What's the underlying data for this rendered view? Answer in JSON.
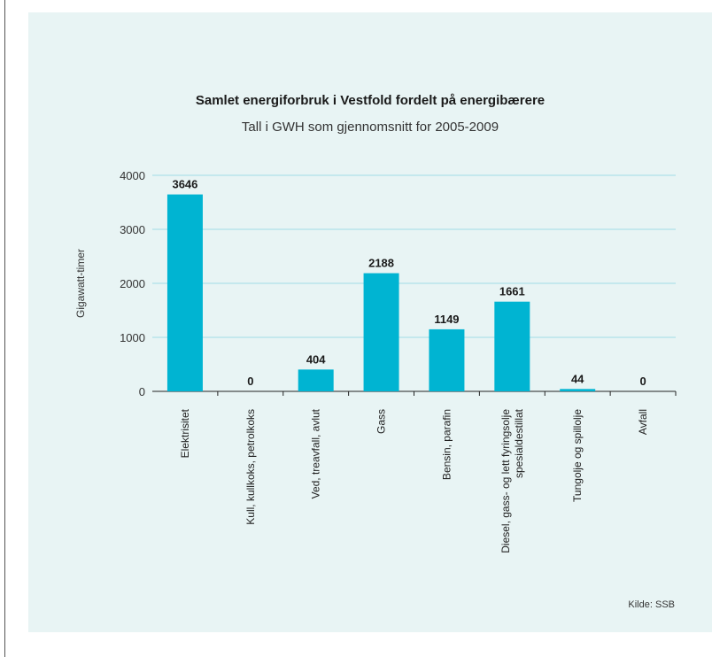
{
  "chart_data": {
    "type": "bar",
    "title": "Samlet energiforbruk i Vestfold fordelt på energibærere",
    "subtitle": "Tall i GWH som gjennomsnitt for 2005-2009",
    "xlabel": "",
    "ylabel": "Gigawatt-timer",
    "ylim": [
      0,
      4000
    ],
    "yticks": [
      "0",
      "1000",
      "2000",
      "3000",
      "4000"
    ],
    "grid": true,
    "bar_color": "#00b4d2",
    "gridline_color": "#9fdbe6",
    "categories": [
      "Elektrisitet",
      "Kull, kullkoks, petrolkoks",
      "Ved, treavfall, avlut",
      "Gass",
      "Bensin, parafin",
      "Diesel, gass- og lett fyringsolje spesialdestillat",
      "Tungolje og spillolje",
      "Avfall"
    ],
    "category_lines": [
      [
        "Elektrisitet"
      ],
      [
        "Kull, kullkoks, petrolkoks"
      ],
      [
        "Ved, treavfall, avlut"
      ],
      [
        "Gass"
      ],
      [
        "Bensin, parafin"
      ],
      [
        "Diesel, gass- og lett fyringsolje",
        "spesialdestillat"
      ],
      [
        "Tungolje og spillolje"
      ],
      [
        "Avfall"
      ]
    ],
    "values": [
      3646,
      0,
      404,
      2188,
      1149,
      1661,
      44,
      0
    ],
    "data_labels": [
      "3646",
      "0",
      "404",
      "2188",
      "1149",
      "1661",
      "44",
      "0"
    ]
  },
  "source": "Kilde: SSB"
}
